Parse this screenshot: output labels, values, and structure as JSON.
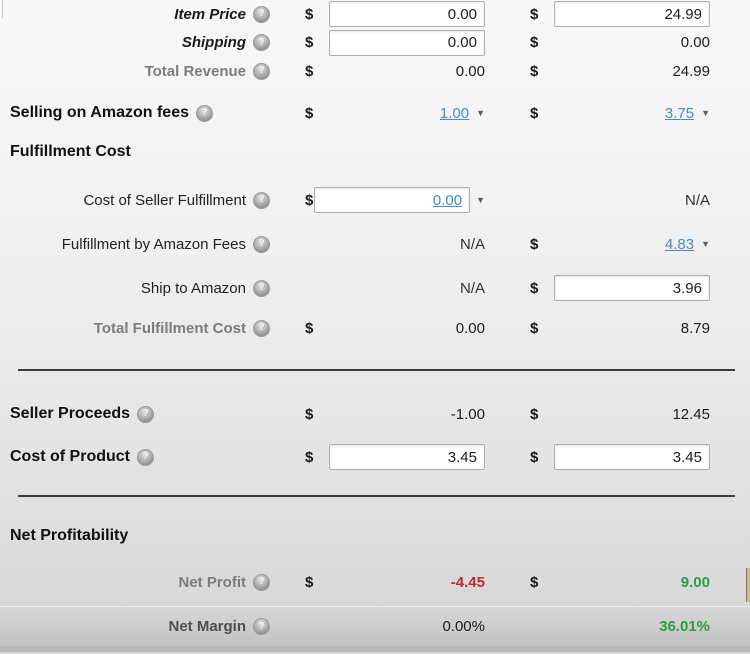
{
  "currency_symbol": "$",
  "icons": {
    "help": "?",
    "dropdown": "▼"
  },
  "colors": {
    "negative_value": "#c1272d",
    "positive_value": "#2e9e41",
    "link_blue": "#4a8ac2"
  },
  "rows": {
    "item_price": {
      "label": "Item Price",
      "col1_value": "0.00",
      "col2_value": "24.99"
    },
    "shipping": {
      "label": "Shipping",
      "col1_value": "0.00",
      "col2_value": "0.00"
    },
    "total_revenue": {
      "label": "Total Revenue",
      "col1_value": "0.00",
      "col2_value": "24.99"
    },
    "selling_on_amazon_fees": {
      "label": "Selling on Amazon fees",
      "col1_value": "1.00",
      "col2_value": "3.75"
    },
    "fulfillment_cost_header": {
      "label": "Fulfillment Cost"
    },
    "cost_of_seller_fulfillment": {
      "label": "Cost of Seller Fulfillment",
      "col1_value": "0.00",
      "col2_value": "N/A"
    },
    "fulfillment_by_amazon_fees": {
      "label": "Fulfillment by Amazon Fees",
      "col1_value": "N/A",
      "col2_value": "4.83"
    },
    "ship_to_amazon": {
      "label": "Ship to Amazon",
      "col1_value": "N/A",
      "col2_value": "3.96"
    },
    "total_fulfillment_cost": {
      "label": "Total Fulfillment Cost",
      "col1_value": "0.00",
      "col2_value": "8.79"
    },
    "seller_proceeds": {
      "label": "Seller Proceeds",
      "col1_value": "-1.00",
      "col2_value": "12.45"
    },
    "cost_of_product": {
      "label": "Cost of Product",
      "col1_value": "3.45",
      "col2_value": "3.45"
    },
    "net_profitability_header": {
      "label": "Net Profitability"
    },
    "net_profit": {
      "label": "Net Profit",
      "col1_value": "-4.45",
      "col2_value": "9.00"
    },
    "net_margin": {
      "label": "Net Margin",
      "col1_value": "0.00%",
      "col2_value": "36.01%"
    }
  }
}
